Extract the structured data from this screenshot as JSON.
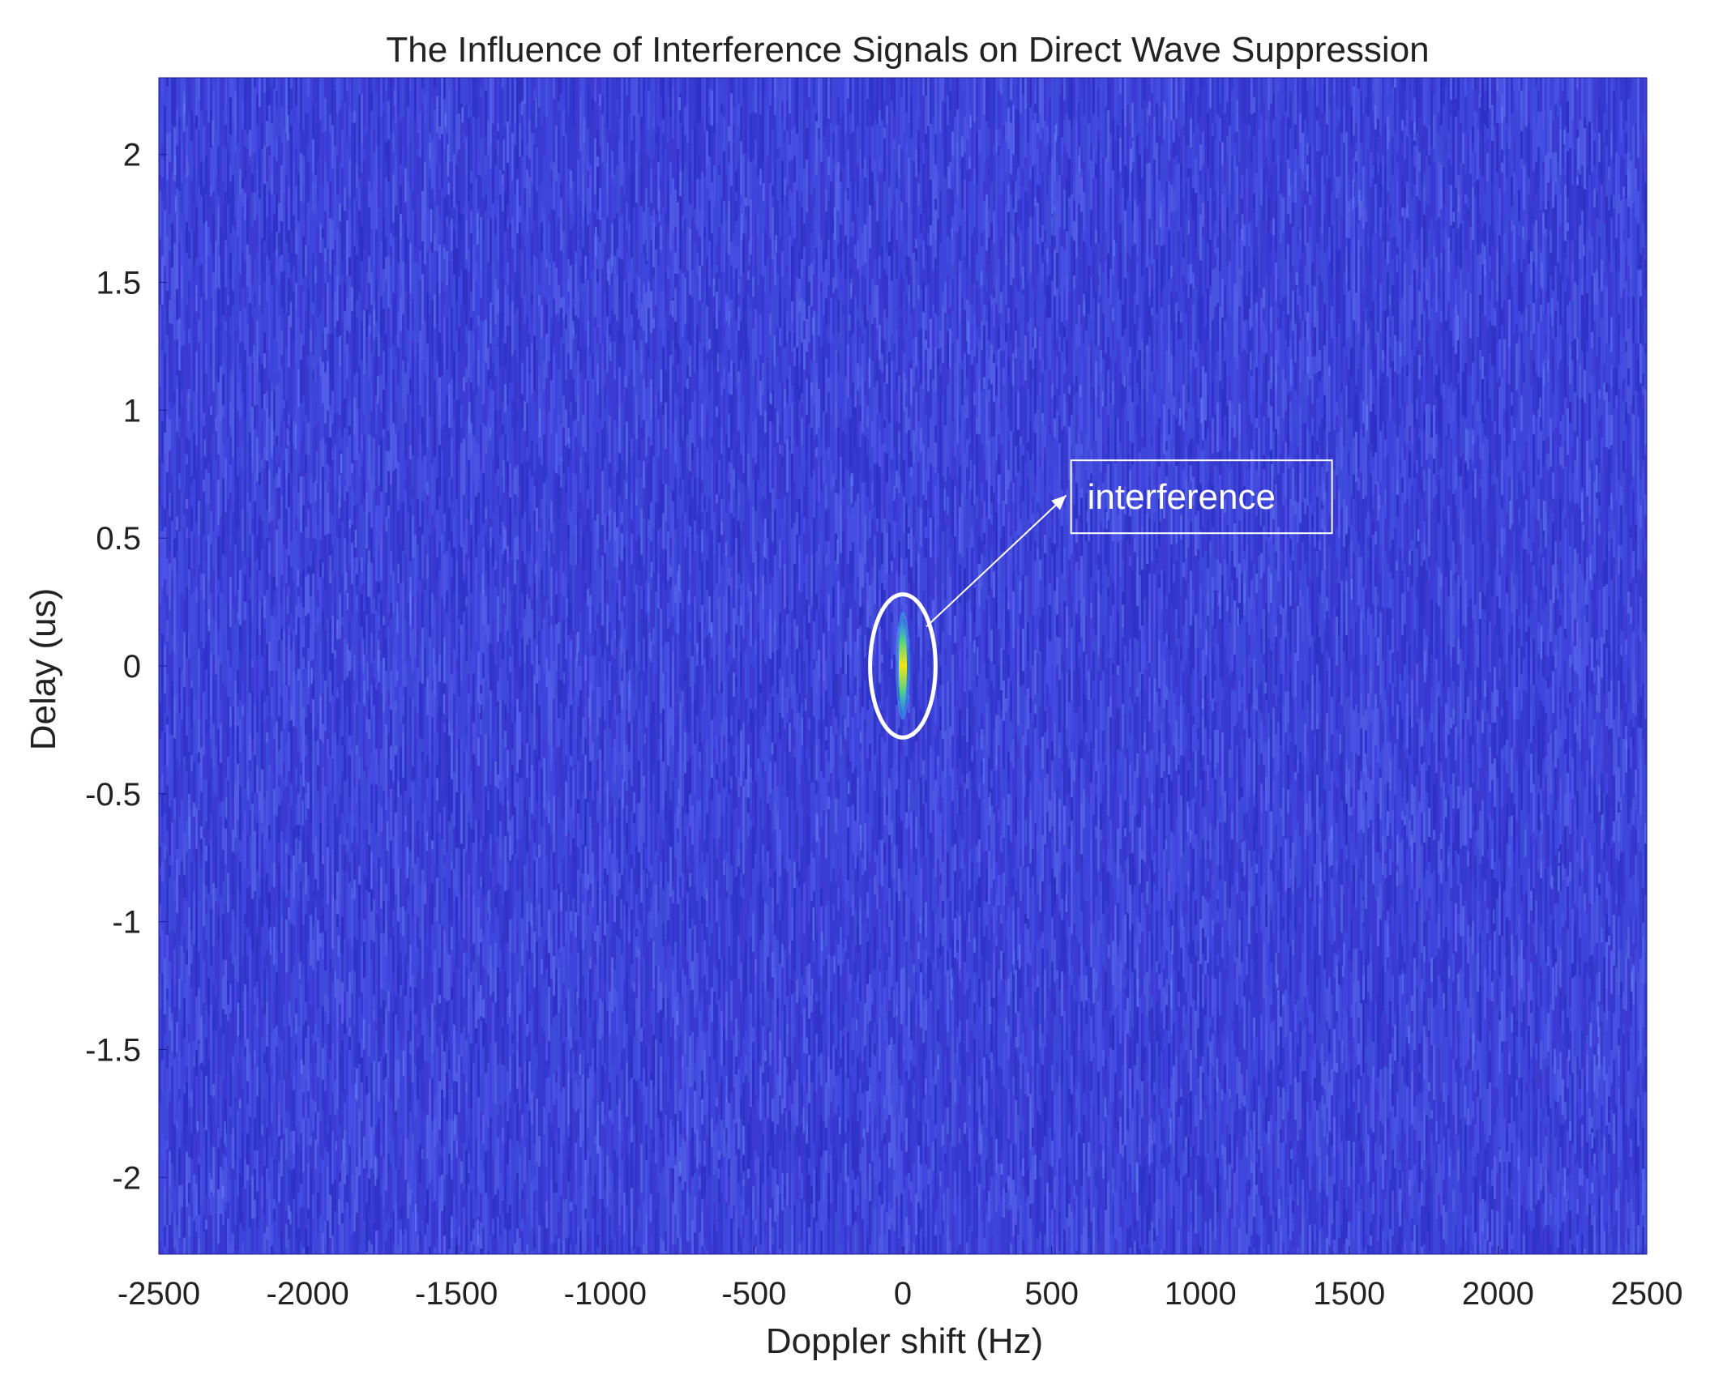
{
  "chart_data": {
    "type": "heatmap",
    "title": "The Influence of Interference Signals on Direct Wave Suppression",
    "xlabel": "Doppler shift (Hz)",
    "ylabel": "Delay (us)",
    "xlim": [
      -2500,
      2500
    ],
    "ylim": [
      -2.3,
      2.3
    ],
    "x_ticks": [
      -2500,
      -2000,
      -1500,
      -1000,
      -500,
      0,
      500,
      1000,
      1500,
      2000,
      2500
    ],
    "y_ticks": [
      2,
      1.5,
      1,
      0.5,
      0,
      -0.5,
      -1,
      -1.5,
      -2
    ],
    "grid": false,
    "background_noise_color": "#3a3fd6",
    "peak": {
      "doppler_hz": 0,
      "delay_us": 0,
      "delay_extent_us": [
        -0.18,
        0.18
      ],
      "colors": [
        "#2fb5e0",
        "#4fd08a",
        "#f2e51b"
      ]
    },
    "annotation": {
      "text": "interference",
      "ellipse_center": [
        0,
        0
      ],
      "ellipse_radii": [
        110,
        0.28
      ],
      "box_anchor": [
        500,
        0.5
      ],
      "color": "#ffffff"
    }
  }
}
